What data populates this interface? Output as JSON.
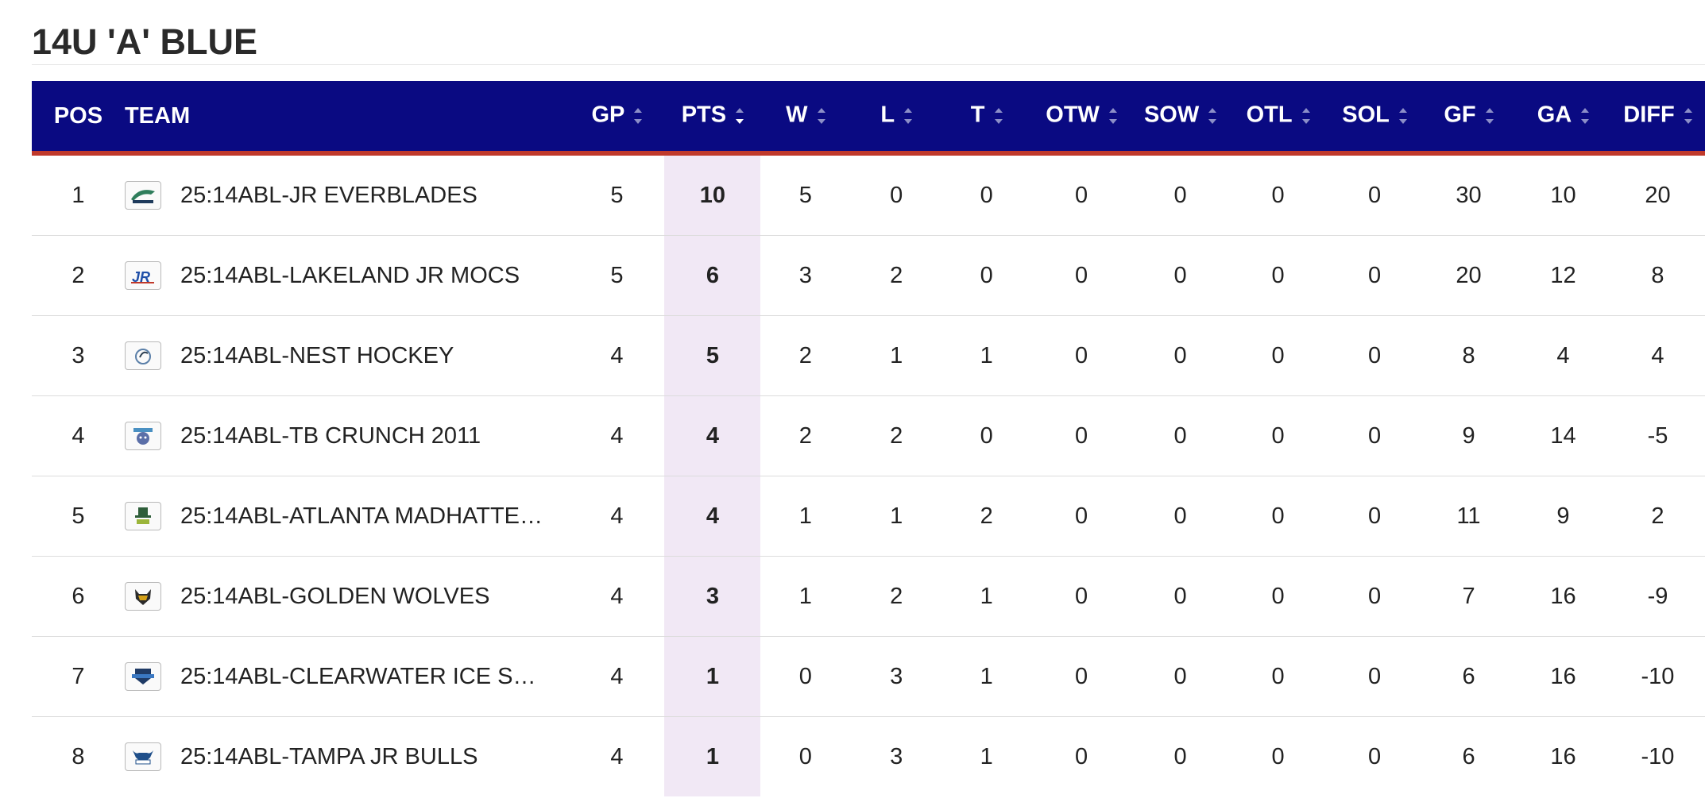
{
  "title": "14U 'A' BLUE",
  "columns": {
    "pos": "POS",
    "team": "TEAM",
    "gp": "GP",
    "pts": "PTS",
    "w": "W",
    "l": "L",
    "t": "T",
    "otw": "OTW",
    "sow": "SOW",
    "otl": "OTL",
    "sol": "SOL",
    "gf": "GF",
    "ga": "GA",
    "diff": "DIFF"
  },
  "sort": {
    "column": "PTS",
    "direction": "descending"
  },
  "colors": {
    "header_bg": "#0a0a82",
    "header_accent": "#c0392b",
    "pts_highlight": "#f1e8f5"
  },
  "rows": [
    {
      "pos": "1",
      "logo": "everblades-logo-icon",
      "team": "25:14ABL-JR EVERBLADES",
      "gp": "5",
      "pts": "10",
      "w": "5",
      "l": "0",
      "t": "0",
      "otw": "0",
      "sow": "0",
      "otl": "0",
      "sol": "0",
      "gf": "30",
      "ga": "10",
      "diff": "20"
    },
    {
      "pos": "2",
      "logo": "jr-mocs-logo-icon",
      "team": "25:14ABL-LAKELAND JR MOCS",
      "gp": "5",
      "pts": "6",
      "w": "3",
      "l": "2",
      "t": "0",
      "otw": "0",
      "sow": "0",
      "otl": "0",
      "sol": "0",
      "gf": "20",
      "ga": "12",
      "diff": "8"
    },
    {
      "pos": "3",
      "logo": "nest-hockey-logo-icon",
      "team": "25:14ABL-NEST HOCKEY",
      "gp": "4",
      "pts": "5",
      "w": "2",
      "l": "1",
      "t": "1",
      "otw": "0",
      "sow": "0",
      "otl": "0",
      "sol": "0",
      "gf": "8",
      "ga": "4",
      "diff": "4"
    },
    {
      "pos": "4",
      "logo": "tb-crunch-logo-icon",
      "team": "25:14ABL-TB CRUNCH 2011",
      "gp": "4",
      "pts": "4",
      "w": "2",
      "l": "2",
      "t": "0",
      "otw": "0",
      "sow": "0",
      "otl": "0",
      "sol": "0",
      "gf": "9",
      "ga": "14",
      "diff": "-5"
    },
    {
      "pos": "5",
      "logo": "madhatters-logo-icon",
      "team": "25:14ABL-ATLANTA MADHATTE…",
      "gp": "4",
      "pts": "4",
      "w": "1",
      "l": "1",
      "t": "2",
      "otw": "0",
      "sow": "0",
      "otl": "0",
      "sol": "0",
      "gf": "11",
      "ga": "9",
      "diff": "2"
    },
    {
      "pos": "6",
      "logo": "golden-wolves-logo-icon",
      "team": "25:14ABL-GOLDEN WOLVES",
      "gp": "4",
      "pts": "3",
      "w": "1",
      "l": "2",
      "t": "1",
      "otw": "0",
      "sow": "0",
      "otl": "0",
      "sol": "0",
      "gf": "7",
      "ga": "16",
      "diff": "-9"
    },
    {
      "pos": "7",
      "logo": "clearwater-ice-logo-icon",
      "team": "25:14ABL-CLEARWATER ICE S…",
      "gp": "4",
      "pts": "1",
      "w": "0",
      "l": "3",
      "t": "1",
      "otw": "0",
      "sow": "0",
      "otl": "0",
      "sol": "0",
      "gf": "6",
      "ga": "16",
      "diff": "-10"
    },
    {
      "pos": "8",
      "logo": "tampa-jr-bulls-logo-icon",
      "team": "25:14ABL-TAMPA JR BULLS",
      "gp": "4",
      "pts": "1",
      "w": "0",
      "l": "3",
      "t": "1",
      "otw": "0",
      "sow": "0",
      "otl": "0",
      "sol": "0",
      "gf": "6",
      "ga": "16",
      "diff": "-10"
    }
  ]
}
